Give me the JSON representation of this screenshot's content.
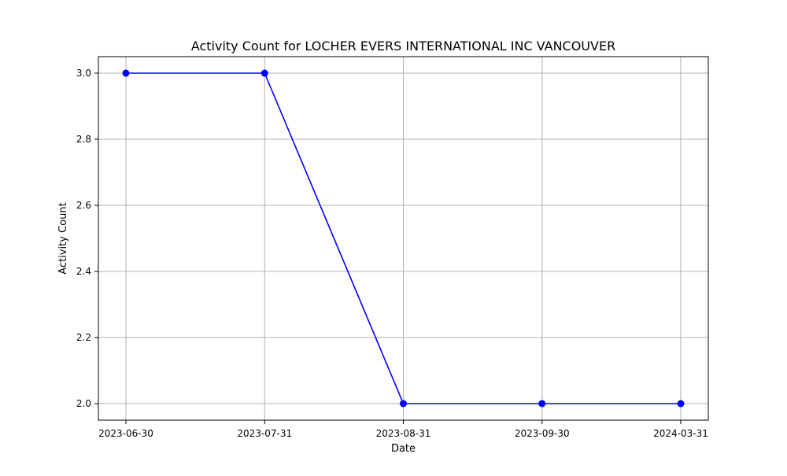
{
  "chart_data": {
    "type": "line",
    "title": "Activity Count for LOCHER EVERS INTERNATIONAL INC VANCOUVER",
    "xlabel": "Date",
    "ylabel": "Activity Count",
    "categories": [
      "2023-06-30",
      "2023-07-31",
      "2023-08-31",
      "2023-09-30",
      "2024-03-31"
    ],
    "series": [
      {
        "values": [
          3,
          3,
          2,
          2,
          2
        ],
        "color": "#0000ff",
        "marker": "circle"
      }
    ],
    "y_ticks": [
      2.0,
      2.2,
      2.4,
      2.6,
      2.8,
      3.0
    ],
    "ylim": [
      1.95,
      3.05
    ],
    "grid": true
  }
}
